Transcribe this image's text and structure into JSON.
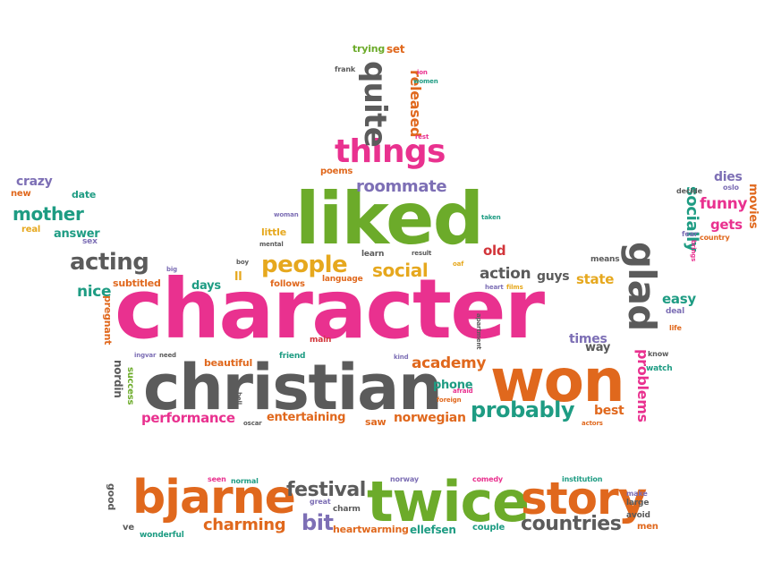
{
  "palette": {
    "pink": "#e9318f",
    "green": "#6cab2a",
    "orange": "#e0681d",
    "gray": "#5b5b5b",
    "teal": "#1e9c83",
    "yellow": "#e6a81e",
    "purple": "#7d6fb5",
    "red": "#d2353a"
  },
  "words": [
    {
      "text": "character",
      "color": "pink"
    },
    {
      "text": "christian",
      "color": "gray"
    },
    {
      "text": "liked",
      "color": "green"
    },
    {
      "text": "won",
      "color": "orange"
    },
    {
      "text": "twice",
      "color": "green"
    },
    {
      "text": "story",
      "color": "orange"
    },
    {
      "text": "bjarne",
      "color": "orange"
    },
    {
      "text": "things",
      "color": "pink"
    },
    {
      "text": "glad",
      "color": "gray"
    },
    {
      "text": "quite",
      "color": "gray"
    },
    {
      "text": "people",
      "color": "yellow"
    },
    {
      "text": "acting",
      "color": "gray"
    },
    {
      "text": "probably",
      "color": "teal"
    },
    {
      "text": "festival",
      "color": "gray"
    },
    {
      "text": "bit",
      "color": "purple"
    },
    {
      "text": "countries",
      "color": "gray"
    },
    {
      "text": "charming",
      "color": "orange"
    },
    {
      "text": "roommate",
      "color": "purple"
    },
    {
      "text": "released",
      "color": "orange"
    },
    {
      "text": "mother",
      "color": "teal"
    },
    {
      "text": "social",
      "color": "yellow"
    },
    {
      "text": "socially",
      "color": "teal"
    },
    {
      "text": "academy",
      "color": "orange"
    },
    {
      "text": "performance",
      "color": "pink"
    },
    {
      "text": "norwegian",
      "color": "orange"
    },
    {
      "text": "entertaining",
      "color": "orange"
    },
    {
      "text": "problems",
      "color": "pink"
    },
    {
      "text": "action",
      "color": "gray"
    },
    {
      "text": "guys",
      "color": "gray"
    },
    {
      "text": "funny",
      "color": "pink"
    },
    {
      "text": "old",
      "color": "red"
    },
    {
      "text": "best",
      "color": "orange"
    },
    {
      "text": "state",
      "color": "yellow"
    },
    {
      "text": "times",
      "color": "purple"
    },
    {
      "text": "phone",
      "color": "teal"
    },
    {
      "text": "easy",
      "color": "teal"
    },
    {
      "text": "gets",
      "color": "pink"
    },
    {
      "text": "dies",
      "color": "purple"
    },
    {
      "text": "movies",
      "color": "orange"
    },
    {
      "text": "nice",
      "color": "teal"
    },
    {
      "text": "crazy",
      "color": "purple"
    },
    {
      "text": "answer",
      "color": "teal"
    },
    {
      "text": "date",
      "color": "teal"
    },
    {
      "text": "new",
      "color": "orange"
    },
    {
      "text": "real",
      "color": "yellow"
    },
    {
      "text": "sex",
      "color": "purple"
    },
    {
      "text": "subtitled",
      "color": "orange"
    },
    {
      "text": "pregnant",
      "color": "orange"
    },
    {
      "text": "days",
      "color": "teal"
    },
    {
      "text": "ll",
      "color": "yellow"
    },
    {
      "text": "beautiful",
      "color": "orange"
    },
    {
      "text": "nordin",
      "color": "gray"
    },
    {
      "text": "success",
      "color": "green"
    },
    {
      "text": "trying",
      "color": "green"
    },
    {
      "text": "set",
      "color": "orange"
    },
    {
      "text": "poems",
      "color": "orange"
    },
    {
      "text": "way",
      "color": "gray"
    },
    {
      "text": "ellefsen",
      "color": "teal"
    },
    {
      "text": "couple",
      "color": "teal"
    },
    {
      "text": "heartwarming",
      "color": "orange"
    },
    {
      "text": "good",
      "color": "gray"
    },
    {
      "text": "ve",
      "color": "gray"
    },
    {
      "text": "men",
      "color": "orange"
    },
    {
      "text": "little",
      "color": "yellow"
    },
    {
      "text": "follows",
      "color": "orange"
    },
    {
      "text": "language",
      "color": "orange"
    },
    {
      "text": "learn",
      "color": "gray"
    },
    {
      "text": "saw",
      "color": "orange"
    },
    {
      "text": "means",
      "color": "gray"
    },
    {
      "text": "watch",
      "color": "teal"
    },
    {
      "text": "life",
      "color": "orange"
    },
    {
      "text": "deal",
      "color": "purple"
    },
    {
      "text": "know",
      "color": "gray"
    },
    {
      "text": "large",
      "color": "gray"
    },
    {
      "text": "make",
      "color": "purple"
    },
    {
      "text": "avoid",
      "color": "gray"
    },
    {
      "text": "wonderful",
      "color": "teal"
    },
    {
      "text": "charm",
      "color": "gray"
    },
    {
      "text": "great",
      "color": "purple"
    },
    {
      "text": "norway",
      "color": "purple"
    },
    {
      "text": "comedy",
      "color": "pink"
    },
    {
      "text": "institution",
      "color": "teal"
    },
    {
      "text": "seen",
      "color": "pink"
    },
    {
      "text": "normal",
      "color": "teal"
    },
    {
      "text": "frank",
      "color": "gray"
    },
    {
      "text": "ion",
      "color": "pink"
    },
    {
      "text": "women",
      "color": "teal"
    },
    {
      "text": "rest",
      "color": "pink"
    },
    {
      "text": "woman",
      "color": "purple"
    },
    {
      "text": "mental",
      "color": "gray"
    },
    {
      "text": "boy",
      "color": "gray"
    },
    {
      "text": "big",
      "color": "purple"
    },
    {
      "text": "result",
      "color": "gray"
    },
    {
      "text": "oaf",
      "color": "yellow"
    },
    {
      "text": "heart",
      "color": "purple"
    },
    {
      "text": "films",
      "color": "yellow"
    },
    {
      "text": "taken",
      "color": "teal"
    },
    {
      "text": "decide",
      "color": "gray"
    },
    {
      "text": "oslo",
      "color": "purple"
    },
    {
      "text": "fear",
      "color": "purple"
    },
    {
      "text": "brings",
      "color": "pink"
    },
    {
      "text": "country",
      "color": "orange"
    },
    {
      "text": "main",
      "color": "red"
    },
    {
      "text": "apartment",
      "color": "gray"
    },
    {
      "text": "kind",
      "color": "purple"
    },
    {
      "text": "friend",
      "color": "teal"
    },
    {
      "text": "ingvar",
      "color": "purple"
    },
    {
      "text": "need",
      "color": "gray"
    },
    {
      "text": "foreign",
      "color": "orange"
    },
    {
      "text": "afraid",
      "color": "pink"
    },
    {
      "text": "oscar",
      "color": "gray"
    },
    {
      "text": "bell",
      "color": "gray"
    },
    {
      "text": "actors",
      "color": "orange"
    }
  ]
}
